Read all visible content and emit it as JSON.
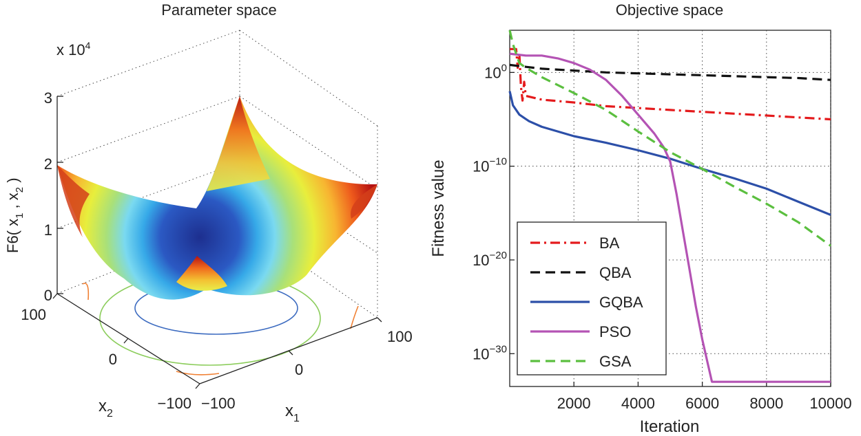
{
  "chart_data": [
    {
      "type": "surface3d",
      "title": "Parameter space",
      "xlabel_main": "x",
      "xlabel_sub": "1",
      "ylabel_main": "x",
      "ylabel_sub": "2",
      "zlabel_parts": [
        "F6( x",
        "1",
        " , x",
        "2",
        " )"
      ],
      "z_multiplier_base": "x 10",
      "z_multiplier_exp": "4",
      "x_ticks": [
        "−100",
        "0",
        "100"
      ],
      "y_ticks": [
        "100",
        "0",
        "−100"
      ],
      "z_ticks": [
        "0",
        "1",
        "2",
        "3"
      ],
      "xlim": [
        -100,
        100
      ],
      "ylim": [
        -100,
        100
      ],
      "zlim": [
        0,
        30000
      ]
    },
    {
      "type": "line",
      "title": "Objective space",
      "xlabel": "Iteration",
      "ylabel": "Fitness value",
      "xscale": "linear",
      "yscale": "log",
      "xlim": [
        0,
        10000
      ],
      "ylim_log10": [
        -33.5,
        4.5
      ],
      "x_ticks": [
        "2000",
        "4000",
        "6000",
        "8000",
        "10000"
      ],
      "x_tick_values": [
        2000,
        4000,
        6000,
        8000,
        10000
      ],
      "y_tick_log10": [
        0,
        -10,
        -20,
        -30
      ],
      "y_tick_exponents": [
        "0",
        "−10",
        "−20",
        "−30"
      ],
      "y_tick_base": "10",
      "grid": true,
      "legend_position": "bottom-left",
      "series": [
        {
          "name": "BA",
          "color": "#e41a1c",
          "dash": "dashdot",
          "x": [
            0,
            200,
            250,
            300,
            350,
            400,
            450,
            500,
            1000,
            2000,
            3000,
            4000,
            5000,
            6000,
            7000,
            8000,
            9000,
            10000
          ],
          "log10_y": [
            2.5,
            2.5,
            0.5,
            2.0,
            -1.5,
            -3.0,
            -1.0,
            -2.5,
            -2.9,
            -3.2,
            -3.6,
            -3.8,
            -4.0,
            -4.2,
            -4.4,
            -4.6,
            -4.8,
            -5.0
          ]
        },
        {
          "name": "QBA",
          "color": "#111111",
          "dash": "dashed",
          "x": [
            0,
            500,
            1000,
            2000,
            3000,
            4000,
            5000,
            6000,
            7000,
            8000,
            9000,
            9500,
            10000
          ],
          "log10_y": [
            0.8,
            0.6,
            0.4,
            0.2,
            0.0,
            -0.1,
            -0.2,
            -0.3,
            -0.4,
            -0.5,
            -0.6,
            -0.7,
            -0.8
          ]
        },
        {
          "name": "GQBA",
          "color": "#2c4fa8",
          "dash": "solid",
          "x": [
            0,
            100,
            300,
            600,
            1000,
            2000,
            3000,
            4000,
            5000,
            6000,
            7000,
            8000,
            9000,
            10000
          ],
          "log10_y": [
            -2.0,
            -3.5,
            -4.5,
            -5.2,
            -5.8,
            -6.8,
            -7.5,
            -8.3,
            -9.2,
            -10.3,
            -11.3,
            -12.4,
            -13.8,
            -15.2
          ]
        },
        {
          "name": "PSO",
          "color": "#b453b4",
          "dash": "solid",
          "x": [
            0,
            500,
            1000,
            1500,
            2000,
            2500,
            3000,
            3500,
            4000,
            4500,
            4800,
            5000,
            5200,
            5400,
            5600,
            5800,
            6000,
            6200,
            6300,
            6400,
            10000
          ],
          "log10_y": [
            2.0,
            1.8,
            1.8,
            1.5,
            1.0,
            0.3,
            -0.8,
            -2.5,
            -4.5,
            -6.5,
            -8.0,
            -9.5,
            -13.0,
            -17.0,
            -21.0,
            -25.0,
            -28.5,
            -31.5,
            -33.0,
            -33.0,
            -33.0
          ]
        },
        {
          "name": "GSA",
          "color": "#5bbf3f",
          "dash": "dashed",
          "x": [
            0,
            100,
            300,
            500,
            1000,
            2000,
            3000,
            4000,
            5000,
            6000,
            7000,
            8000,
            9000,
            10000
          ],
          "log10_y": [
            4.5,
            3.0,
            1.0,
            0.5,
            -0.5,
            -2.2,
            -4.0,
            -6.3,
            -8.5,
            -10.3,
            -12.2,
            -14.0,
            -16.0,
            -18.5
          ]
        }
      ]
    }
  ]
}
